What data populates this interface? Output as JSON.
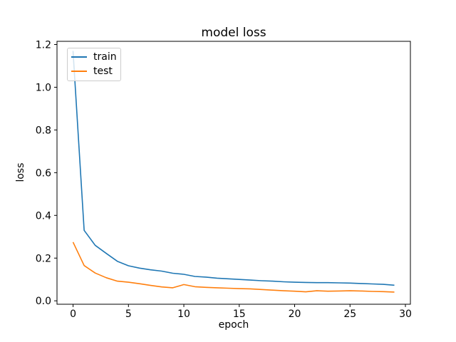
{
  "figure": {
    "background": "#ffffff",
    "text_color": "#000000",
    "spine_color": "#000000"
  },
  "chart_data": {
    "type": "line",
    "title": "model loss",
    "xlabel": "epoch",
    "ylabel": "loss",
    "grid": false,
    "xlim": [
      -1.45,
      30.45
    ],
    "ylim": [
      -0.016,
      1.215
    ],
    "xticks": {
      "values": [
        0,
        5,
        10,
        15,
        20,
        25,
        30
      ],
      "labels": [
        "0",
        "5",
        "10",
        "15",
        "20",
        "25",
        "30"
      ]
    },
    "yticks": {
      "values": [
        0.0,
        0.2,
        0.4,
        0.6,
        0.8,
        1.0,
        1.2
      ],
      "labels": [
        "0.0",
        "0.2",
        "0.4",
        "0.6",
        "0.8",
        "1.0",
        "1.2"
      ]
    },
    "x": [
      0,
      1,
      2,
      3,
      4,
      5,
      6,
      7,
      8,
      9,
      10,
      11,
      12,
      13,
      14,
      15,
      16,
      17,
      18,
      19,
      20,
      21,
      22,
      23,
      24,
      25,
      26,
      27,
      28,
      29
    ],
    "series": [
      {
        "name": "train",
        "color": "#1f77b4",
        "values": [
          1.17,
          0.33,
          0.26,
          0.222,
          0.185,
          0.164,
          0.153,
          0.145,
          0.139,
          0.129,
          0.124,
          0.114,
          0.111,
          0.106,
          0.103,
          0.1,
          0.097,
          0.094,
          0.092,
          0.089,
          0.087,
          0.086,
          0.085,
          0.085,
          0.084,
          0.083,
          0.081,
          0.079,
          0.077,
          0.073
        ]
      },
      {
        "name": "test",
        "color": "#ff7f0e",
        "values": [
          0.275,
          0.165,
          0.13,
          0.108,
          0.092,
          0.087,
          0.08,
          0.072,
          0.065,
          0.061,
          0.076,
          0.066,
          0.063,
          0.061,
          0.059,
          0.057,
          0.056,
          0.053,
          0.05,
          0.047,
          0.045,
          0.042,
          0.047,
          0.045,
          0.046,
          0.047,
          0.046,
          0.044,
          0.043,
          0.041
        ]
      }
    ],
    "legend": {
      "position": "upper-left",
      "entries": [
        {
          "label": "train",
          "color": "#1f77b4"
        },
        {
          "label": "test",
          "color": "#ff7f0e"
        }
      ]
    }
  }
}
